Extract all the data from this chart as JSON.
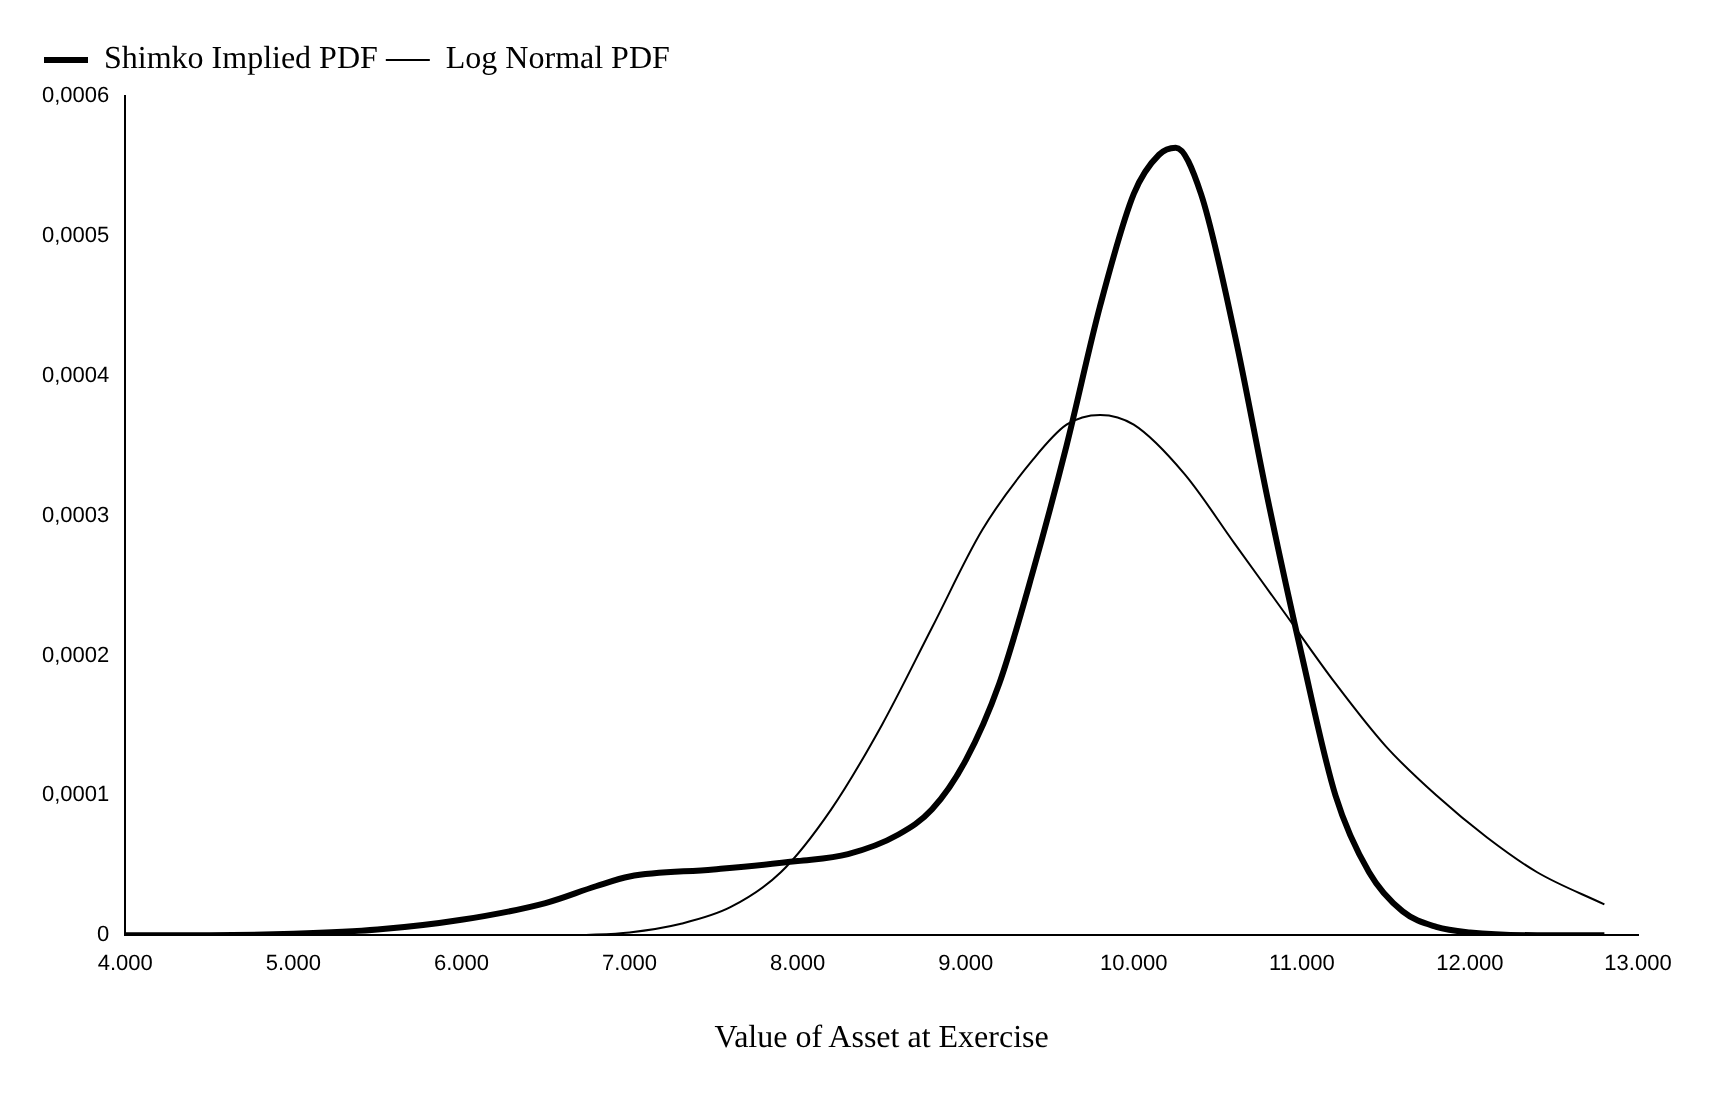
{
  "chart_data": {
    "type": "line",
    "xlabel": "Value of Asset at Exercise",
    "xlim": [
      4000,
      13000
    ],
    "xticks": [
      {
        "value": 4000,
        "label": "4.000"
      },
      {
        "value": 5000,
        "label": "5.000"
      },
      {
        "value": 6000,
        "label": "6.000"
      },
      {
        "value": 7000,
        "label": "7.000"
      },
      {
        "value": 8000,
        "label": "8.000"
      },
      {
        "value": 9000,
        "label": "9.000"
      },
      {
        "value": 10000,
        "label": "10.000"
      },
      {
        "value": 11000,
        "label": "11.000"
      },
      {
        "value": 12000,
        "label": "12.000"
      },
      {
        "value": 13000,
        "label": "13.000"
      }
    ],
    "ylim": [
      0,
      0.0006
    ],
    "yticks": [
      {
        "value": 0,
        "label": "0"
      },
      {
        "value": 0.0001,
        "label": "0,0001"
      },
      {
        "value": 0.0002,
        "label": "0,0002"
      },
      {
        "value": 0.0003,
        "label": "0,0003"
      },
      {
        "value": 0.0004,
        "label": "0,0004"
      },
      {
        "value": 0.0005,
        "label": "0,0005"
      },
      {
        "value": 0.0006,
        "label": "0,0006"
      }
    ],
    "grid": false,
    "legend": "top left",
    "marker": "none",
    "line_style": "solid",
    "series": [
      {
        "name": "Shimko Implied PDF",
        "color": "#000000",
        "x": [
          4000,
          4500,
          5000,
          5500,
          6000,
          6500,
          6800,
          7000,
          7500,
          8000,
          8300,
          8600,
          8800,
          9000,
          9200,
          9400,
          9600,
          9800,
          10000,
          10150,
          10250,
          10400,
          10600,
          10800,
          11000,
          11200,
          11400,
          11600,
          11800,
          12000,
          12400,
          12800
        ],
        "values": [
          0,
          0,
          1e-06,
          4e-06,
          1.1e-05,
          2.3e-05,
          3.5e-05,
          4.2e-05,
          4.7e-05,
          5.3e-05,
          5.8e-05,
          7.2e-05,
          9e-05,
          0.000125,
          0.00018,
          0.00026,
          0.00035,
          0.00045,
          0.00053,
          0.000558,
          0.000563,
          0.00053,
          0.00043,
          0.00031,
          0.0002,
          0.0001,
          4.5e-05,
          1.7e-05,
          6e-06,
          2e-06,
          0,
          0
        ]
      },
      {
        "name": "Log Normal PDF",
        "color": "#000000",
        "x": [
          6700,
          7000,
          7300,
          7600,
          7900,
          8200,
          8500,
          8800,
          9100,
          9400,
          9600,
          9800,
          10000,
          10300,
          10600,
          10900,
          11200,
          11500,
          11800,
          12100,
          12400,
          12800
        ],
        "values": [
          0,
          2e-06,
          8e-06,
          2e-05,
          4.5e-05,
          9e-05,
          0.00015,
          0.00022,
          0.00029,
          0.00034,
          0.000365,
          0.000372,
          0.000365,
          0.00033,
          0.00028,
          0.00023,
          0.00018,
          0.000135,
          0.0001,
          7e-05,
          4.5e-05,
          2.2e-05
        ]
      }
    ]
  }
}
